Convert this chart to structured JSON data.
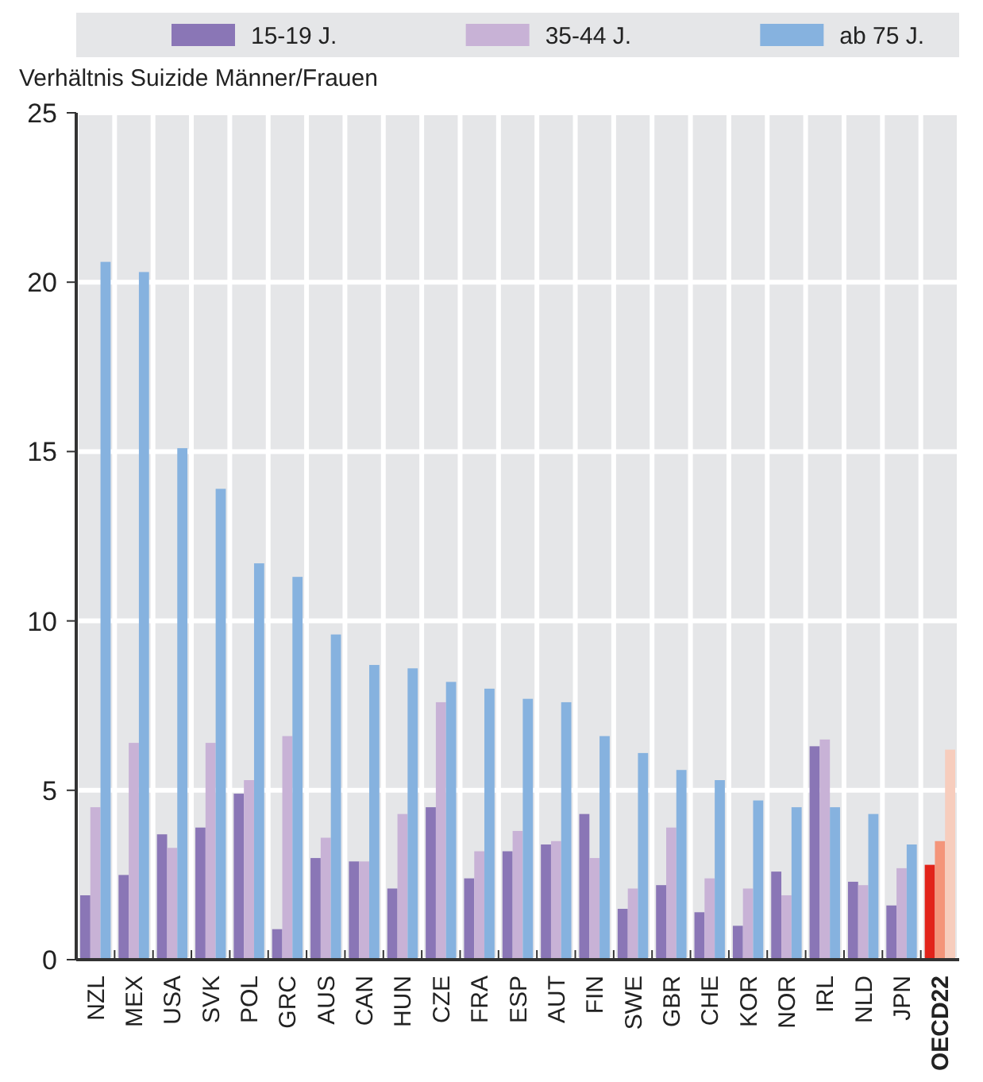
{
  "chart_data": {
    "type": "bar",
    "ylabel": "Verhältnis Suizide Männer/Frauen",
    "categories": [
      "NZL",
      "MEX",
      "USA",
      "SVK",
      "POL",
      "GRC",
      "AUS",
      "CAN",
      "HUN",
      "CZE",
      "FRA",
      "ESP",
      "AUT",
      "FIN",
      "SWE",
      "GBR",
      "CHE",
      "KOR",
      "NOR",
      "IRL",
      "NLD",
      "JPN",
      "OECD22"
    ],
    "series": [
      {
        "name": "15-19 J.",
        "color": "#8a76b6",
        "colors": [
          "#8a76b6",
          "#8a76b6",
          "#8a76b6",
          "#8a76b6",
          "#8a76b6",
          "#8a76b6",
          "#8a76b6",
          "#8a76b6",
          "#8a76b6",
          "#8a76b6",
          "#8a76b6",
          "#8a76b6",
          "#8a76b6",
          "#8a76b6",
          "#8a76b6",
          "#8a76b6",
          "#8a76b6",
          "#8a76b6",
          "#8a76b6",
          "#8a76b6",
          "#8a76b6",
          "#8a76b6",
          "#e2231a"
        ],
        "values": [
          1.9,
          2.5,
          3.7,
          3.9,
          4.9,
          0.9,
          3.0,
          2.9,
          2.1,
          4.5,
          2.4,
          3.2,
          3.4,
          4.3,
          1.5,
          2.2,
          1.4,
          1.0,
          2.6,
          6.3,
          2.3,
          1.6,
          2.8
        ]
      },
      {
        "name": "35-44 J.",
        "color": "#c8b2d6",
        "colors": [
          "#c8b2d6",
          "#c8b2d6",
          "#c8b2d6",
          "#c8b2d6",
          "#c8b2d6",
          "#c8b2d6",
          "#c8b2d6",
          "#c8b2d6",
          "#c8b2d6",
          "#c8b2d6",
          "#c8b2d6",
          "#c8b2d6",
          "#c8b2d6",
          "#c8b2d6",
          "#c8b2d6",
          "#c8b2d6",
          "#c8b2d6",
          "#c8b2d6",
          "#c8b2d6",
          "#c8b2d6",
          "#c8b2d6",
          "#c8b2d6",
          "#f4957a"
        ],
        "values": [
          4.5,
          6.4,
          3.3,
          6.4,
          5.3,
          6.6,
          3.6,
          2.9,
          4.3,
          7.6,
          3.2,
          3.8,
          3.5,
          3.0,
          2.1,
          3.9,
          2.4,
          2.1,
          1.9,
          6.5,
          2.2,
          2.7,
          3.5
        ]
      },
      {
        "name": "ab 75 J.",
        "color": "#86b2df",
        "colors": [
          "#86b2df",
          "#86b2df",
          "#86b2df",
          "#86b2df",
          "#86b2df",
          "#86b2df",
          "#86b2df",
          "#86b2df",
          "#86b2df",
          "#86b2df",
          "#86b2df",
          "#86b2df",
          "#86b2df",
          "#86b2df",
          "#86b2df",
          "#86b2df",
          "#86b2df",
          "#86b2df",
          "#86b2df",
          "#86b2df",
          "#86b2df",
          "#86b2df",
          "#f7cdbd"
        ],
        "values": [
          20.6,
          20.3,
          15.1,
          13.9,
          11.7,
          11.3,
          9.6,
          8.7,
          8.6,
          8.2,
          8.0,
          7.7,
          7.6,
          6.6,
          6.1,
          5.6,
          5.3,
          4.7,
          4.5,
          4.5,
          4.3,
          3.4,
          6.2
        ]
      }
    ],
    "ylim": [
      0,
      25
    ],
    "yticks": [
      0,
      5,
      10,
      15,
      20,
      25
    ],
    "grid": "y",
    "legend": "top"
  }
}
